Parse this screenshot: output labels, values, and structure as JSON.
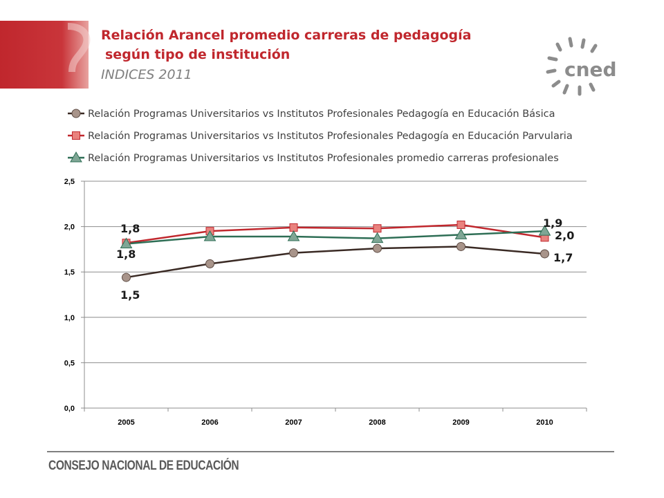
{
  "header": {
    "title_line1": "Relación Arancel promedio carreras de  pedagogía",
    "title_line2": "según tipo de institución",
    "subtitle": "INDICES 2011"
  },
  "logo": {
    "text": "cned"
  },
  "footer": {
    "text": "CONSEJO NACIONAL DE EDUCACIÓN"
  },
  "colors": {
    "accent": "#c0272d",
    "series_basica": "#3a2a24",
    "series_parvularia": "#c0272d",
    "series_promedio": "#2e6e55"
  },
  "chart_data": {
    "type": "line",
    "x": [
      "2005",
      "2006",
      "2007",
      "2008",
      "2009",
      "2010"
    ],
    "ylim": [
      0,
      2.5
    ],
    "yticks": [
      "0,0",
      "0,5",
      "1,0",
      "1,5",
      "2,0",
      "2,5"
    ],
    "grid": true,
    "legend_position": "top",
    "series": [
      {
        "name": "Relación Programas Universitarios vs Institutos Profesionales Pedagogía en Educación Básica",
        "values": [
          1.44,
          1.59,
          1.71,
          1.76,
          1.78,
          1.7
        ],
        "marker": "circle",
        "color": "#3a2a24"
      },
      {
        "name": "Relación Programas Universitarios vs Institutos Profesionales Pedagogía en Educación Parvularia",
        "values": [
          1.82,
          1.95,
          1.99,
          1.98,
          2.02,
          1.88
        ],
        "marker": "square",
        "color": "#c0272d"
      },
      {
        "name": "Relación Programas Universitarios vs Institutos Profesionales promedio carreras profesionales",
        "values": [
          1.81,
          1.89,
          1.89,
          1.87,
          1.91,
          1.95
        ],
        "marker": "triangle",
        "color": "#2e6e55"
      }
    ],
    "annotations": [
      "1,8",
      "1,8",
      "1,5",
      "1,9",
      "2,0",
      "1,7"
    ]
  }
}
